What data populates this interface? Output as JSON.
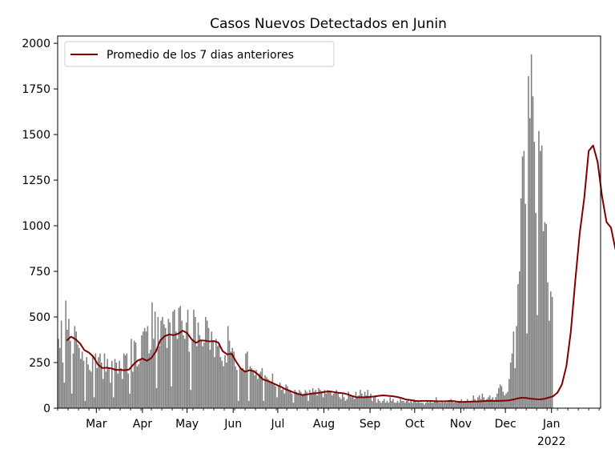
{
  "chart_data": {
    "type": "bar",
    "title": "Casos Nuevos Detectados en Junin",
    "xlabel": "",
    "ylabel": "",
    "x_start": "2021-02-03",
    "x_end": "2022-02-03",
    "ylim": [
      0,
      2040
    ],
    "yticks": [
      0,
      250,
      500,
      750,
      1000,
      1250,
      1500,
      1750,
      2000
    ],
    "xticks": [
      {
        "date": "2021-03-01",
        "label": "Mar"
      },
      {
        "date": "2021-04-01",
        "label": "Apr"
      },
      {
        "date": "2021-05-01",
        "label": "May"
      },
      {
        "date": "2021-06-01",
        "label": "Jun"
      },
      {
        "date": "2021-07-01",
        "label": "Jul"
      },
      {
        "date": "2021-08-01",
        "label": "Aug"
      },
      {
        "date": "2021-09-01",
        "label": "Sep"
      },
      {
        "date": "2021-10-01",
        "label": "Oct"
      },
      {
        "date": "2021-11-01",
        "label": "Nov"
      },
      {
        "date": "2021-12-01",
        "label": "Dec"
      },
      {
        "date": "2022-01-01",
        "label": "Jan",
        "sublabel": "2022"
      }
    ],
    "grid": false,
    "legend_position": "upper-left",
    "bar_color": "#808080",
    "line_color": "#800000",
    "series": [
      {
        "type": "bar",
        "x_step_days": 1,
        "values": [
          380,
          330,
          480,
          250,
          140,
          590,
          430,
          490,
          370,
          80,
          300,
          450,
          420,
          350,
          330,
          270,
          310,
          260,
          40,
          280,
          240,
          210,
          200,
          290,
          60,
          300,
          220,
          280,
          300,
          250,
          160,
          300,
          200,
          270,
          220,
          140,
          260,
          60,
          270,
          250,
          190,
          260,
          220,
          160,
          300,
          290,
          300,
          190,
          80,
          380,
          200,
          370,
          360,
          230,
          240,
          270,
          400,
          420,
          440,
          420,
          450,
          300,
          320,
          580,
          380,
          530,
          110,
          500,
          340,
          480,
          500,
          460,
          440,
          330,
          490,
          470,
          120,
          530,
          540,
          420,
          380,
          550,
          560,
          480,
          400,
          380,
          470,
          540,
          310,
          100,
          380,
          540,
          500,
          340,
          470,
          400,
          370,
          340,
          360,
          500,
          480,
          440,
          320,
          420,
          370,
          280,
          380,
          340,
          360,
          280,
          260,
          230,
          290,
          250,
          450,
          370,
          310,
          330,
          310,
          230,
          210,
          40,
          220,
          210,
          220,
          200,
          300,
          310,
          40,
          230,
          220,
          210,
          180,
          210,
          160,
          190,
          200,
          220,
          40,
          180,
          170,
          160,
          150,
          140,
          190,
          130,
          120,
          60,
          120,
          140,
          100,
          110,
          80,
          130,
          120,
          100,
          90,
          80,
          30,
          100,
          90,
          80,
          100,
          90,
          70,
          80,
          100,
          90,
          40,
          100,
          80,
          110,
          90,
          100,
          70,
          110,
          100,
          90,
          60,
          100,
          80,
          100,
          90,
          90,
          70,
          80,
          90,
          100,
          80,
          60,
          50,
          80,
          60,
          40,
          50,
          90,
          70,
          60,
          70,
          50,
          90,
          60,
          70,
          100,
          80,
          60,
          90,
          70,
          100,
          60,
          80,
          40,
          60,
          70,
          30,
          50,
          40,
          30,
          40,
          50,
          30,
          40,
          30,
          60,
          40,
          50,
          30,
          30,
          40,
          30,
          50,
          40,
          40,
          30,
          40,
          50,
          30,
          40,
          30,
          50,
          40,
          30,
          40,
          30,
          30,
          30,
          20,
          30,
          40,
          30,
          40,
          30,
          30,
          40,
          60,
          40,
          30,
          30,
          40,
          30,
          40,
          30,
          40,
          40,
          50,
          40,
          30,
          40,
          30,
          40,
          40,
          50,
          30,
          40,
          40,
          50,
          30,
          40,
          40,
          70,
          50,
          40,
          60,
          70,
          50,
          80,
          60,
          40,
          50,
          60,
          70,
          50,
          60,
          40,
          60,
          80,
          110,
          130,
          120,
          90,
          70,
          80,
          90,
          160,
          250,
          300,
          420,
          220,
          450,
          680,
          750,
          1150,
          1380,
          1410,
          1120,
          410,
          1820,
          1590,
          1940,
          1710,
          1460,
          1070,
          510,
          1520,
          1410,
          1440,
          970,
          1020,
          1010,
          690,
          480,
          640,
          610
        ]
      },
      {
        "type": "line",
        "name": "Promedio de los 7 dias anteriores",
        "x_start": "2021-02-09",
        "x_step_days": 3,
        "values": [
          370,
          392,
          378,
          355,
          318,
          305,
          282,
          240,
          220,
          222,
          218,
          210,
          210,
          208,
          212,
          240,
          262,
          272,
          260,
          275,
          310,
          372,
          395,
          404,
          400,
          408,
          425,
          412,
          378,
          358,
          372,
          370,
          366,
          368,
          360,
          312,
          295,
          298,
          255,
          218,
          200,
          208,
          202,
          182,
          158,
          150,
          140,
          128,
          118,
          105,
          95,
          85,
          77,
          72,
          76,
          80,
          82,
          86,
          90,
          92,
          88,
          84,
          82,
          76,
          66,
          60,
          60,
          60,
          62,
          64,
          68,
          70,
          68,
          66,
          62,
          56,
          48,
          45,
          40,
          39,
          40,
          40,
          39,
          38,
          38,
          38,
          40,
          38,
          34,
          34,
          35,
          37,
          37,
          38,
          40,
          40,
          40,
          40,
          41,
          42,
          47,
          53,
          57,
          56,
          52,
          50,
          48,
          51,
          58,
          65,
          85,
          130,
          230,
          420,
          700,
          960,
          1150,
          1410,
          1440,
          1350,
          1160,
          1020,
          990,
          870
        ]
      }
    ]
  }
}
